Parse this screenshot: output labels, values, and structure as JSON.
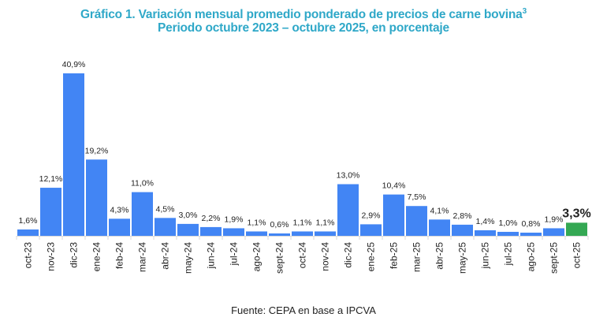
{
  "chart_data": {
    "type": "bar",
    "title": "Gráfico 1. Variación mensual promedio ponderado de precios de carne bovina",
    "title_superscript": "3",
    "subtitle": "Periodo octubre 2023 – octubre 2025, en porcentaje",
    "xlabel": "",
    "ylabel": "",
    "ylim": [
      0,
      41
    ],
    "grid": false,
    "legend": "none",
    "categories": [
      "oct-23",
      "nov-23",
      "dic-23",
      "ene-24",
      "feb-24",
      "mar-24",
      "abr-24",
      "may-24",
      "jun-24",
      "jul-24",
      "ago-24",
      "sept-24",
      "oct-24",
      "nov-24",
      "dic-24",
      "ene-25",
      "feb-25",
      "mar-25",
      "abr-25",
      "may-25",
      "jun-25",
      "jul-25",
      "ago-25",
      "sept-25",
      "oct-25"
    ],
    "values": [
      1.6,
      12.1,
      40.9,
      19.2,
      4.3,
      11.0,
      4.5,
      3.0,
      2.2,
      1.9,
      1.1,
      0.6,
      1.1,
      1.1,
      13.0,
      2.9,
      10.4,
      7.5,
      4.1,
      2.8,
      1.4,
      1.0,
      0.8,
      1.9,
      3.3
    ],
    "data_labels": [
      "1,6%",
      "12,1%",
      "40,9%",
      "19,2%",
      "4,3%",
      "11,0%",
      "4,5%",
      "3,0%",
      "2,2%",
      "1,9%",
      "1,1%",
      "0,6%",
      "1,1%",
      "1,1%",
      "13,0%",
      "2,9%",
      "10,4%",
      "7,5%",
      "4,1%",
      "2,8%",
      "1,4%",
      "1,0%",
      "0,8%",
      "1,9%",
      "3,3%"
    ],
    "highlight_index": 24,
    "colors": {
      "bar": "#4285f4",
      "highlight": "#34a853",
      "title": "#2fa8c8",
      "label": "#222222"
    }
  },
  "source": "Fuente: CEPA en base a IPCVA"
}
